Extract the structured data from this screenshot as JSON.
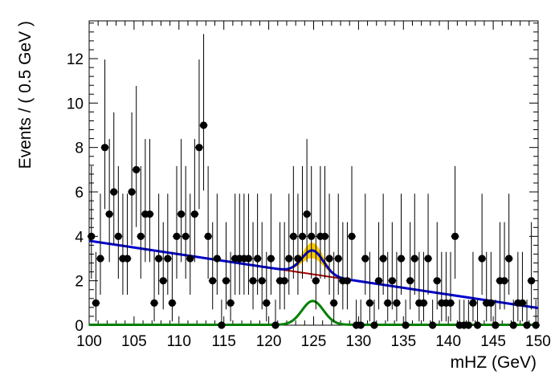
{
  "chart_data": {
    "type": "scatter",
    "title": "",
    "xlabel": "mHZ (GeV)",
    "ylabel": "Events / ( 0.5 GeV )",
    "xlim": [
      100,
      150
    ],
    "ylim": [
      0,
      13.7
    ],
    "grid": false,
    "x_ticks": [
      {
        "value": 100,
        "label": "100"
      },
      {
        "value": 105,
        "label": "105"
      },
      {
        "value": 110,
        "label": "110"
      },
      {
        "value": 115,
        "label": "115"
      },
      {
        "value": 120,
        "label": "120"
      },
      {
        "value": 125,
        "label": "125"
      },
      {
        "value": 130,
        "label": "130"
      },
      {
        "value": 135,
        "label": "135"
      },
      {
        "value": 140,
        "label": "140"
      },
      {
        "value": 145,
        "label": "145"
      },
      {
        "value": 150,
        "label": "150"
      }
    ],
    "y_ticks": [
      {
        "value": 0,
        "label": "0"
      },
      {
        "value": 2,
        "label": "2"
      },
      {
        "value": 4,
        "label": "4"
      },
      {
        "value": 6,
        "label": "6"
      },
      {
        "value": 8,
        "label": "8"
      },
      {
        "value": 10,
        "label": "10"
      },
      {
        "value": 12,
        "label": "12"
      }
    ],
    "points": {
      "x": [
        100.25,
        100.75,
        101.25,
        101.75,
        102.25,
        102.75,
        103.25,
        103.75,
        104.25,
        104.75,
        105.25,
        105.75,
        106.25,
        106.75,
        107.25,
        107.75,
        108.25,
        108.75,
        109.25,
        109.75,
        110.25,
        110.75,
        111.25,
        111.75,
        112.25,
        112.75,
        113.25,
        113.75,
        114.25,
        114.75,
        115.25,
        115.75,
        116.25,
        116.75,
        117.25,
        117.75,
        118.25,
        118.75,
        119.25,
        119.75,
        120.25,
        120.75,
        121.25,
        121.75,
        122.25,
        122.75,
        123.25,
        123.75,
        124.25,
        124.75,
        125.25,
        125.75,
        126.25,
        126.75,
        127.25,
        127.75,
        128.25,
        128.75,
        129.25,
        129.75,
        130.25,
        130.75,
        131.25,
        131.75,
        132.25,
        132.75,
        133.25,
        133.75,
        134.25,
        134.75,
        135.25,
        135.75,
        136.25,
        136.75,
        137.25,
        137.75,
        138.25,
        138.75,
        139.25,
        139.75,
        140.25,
        140.75,
        141.25,
        141.75,
        142.25,
        142.75,
        143.25,
        143.75,
        144.25,
        144.75,
        145.25,
        145.75,
        146.25,
        146.75,
        147.25,
        147.75,
        148.25,
        148.75,
        149.25,
        149.75
      ],
      "y": [
        4,
        1,
        3,
        8,
        5,
        6,
        4,
        3,
        3,
        6,
        7,
        4,
        5,
        5,
        1,
        3,
        2,
        3,
        1,
        4,
        5,
        4,
        3,
        5,
        8,
        9,
        4,
        2,
        3,
        0,
        2,
        1,
        3,
        3,
        3,
        3,
        2,
        3,
        2,
        1,
        3,
        0,
        2,
        2,
        3,
        4,
        3,
        4,
        5,
        4,
        2,
        4,
        4,
        3,
        1,
        3,
        2,
        2,
        4,
        0,
        0,
        3,
        1,
        0,
        2,
        3,
        1,
        2,
        1,
        3,
        0,
        2,
        3,
        1,
        1,
        3,
        0,
        2,
        1,
        1,
        1,
        4,
        0,
        0,
        0,
        1,
        0,
        3,
        1,
        1,
        0,
        2,
        2,
        3,
        0,
        1,
        1,
        0,
        2,
        0
      ],
      "errors_low": [
        1.91,
        0.83,
        1.63,
        2.77,
        2.16,
        2.38,
        1.91,
        1.63,
        1.63,
        2.38,
        2.58,
        1.91,
        2.16,
        2.16,
        0.83,
        1.63,
        1.29,
        1.63,
        0.83,
        1.91,
        2.16,
        1.91,
        1.63,
        2.16,
        2.77,
        2.94,
        1.91,
        1.29,
        1.63,
        0,
        1.29,
        0.83,
        1.63,
        1.63,
        1.63,
        1.63,
        1.29,
        1.63,
        1.29,
        0.83,
        1.63,
        0,
        1.29,
        1.29,
        1.63,
        1.91,
        1.63,
        1.91,
        2.16,
        1.91,
        1.29,
        1.91,
        1.91,
        1.63,
        0.83,
        1.63,
        1.29,
        1.29,
        1.91,
        0,
        0,
        1.63,
        0.83,
        0,
        1.29,
        1.63,
        0.83,
        1.29,
        0.83,
        1.63,
        0,
        1.29,
        1.63,
        0.83,
        0.83,
        1.63,
        0,
        1.29,
        0.83,
        0.83,
        0.83,
        1.91,
        0,
        0,
        0,
        0.83,
        0,
        1.63,
        0.83,
        0.83,
        0,
        1.29,
        1.29,
        1.63,
        0,
        0.83,
        0.83,
        0,
        1.29,
        0
      ],
      "errors_high": [
        3.16,
        2.3,
        2.92,
        3.96,
        3.38,
        3.58,
        3.16,
        2.92,
        2.92,
        3.58,
        3.77,
        3.16,
        3.38,
        3.38,
        2.3,
        2.92,
        2.64,
        2.92,
        2.3,
        3.16,
        3.38,
        3.16,
        2.92,
        3.38,
        3.96,
        4.11,
        3.16,
        2.64,
        2.92,
        1.15,
        2.64,
        2.3,
        2.92,
        2.92,
        2.92,
        2.92,
        2.64,
        2.92,
        2.64,
        2.3,
        2.92,
        1.15,
        2.64,
        2.64,
        2.92,
        3.16,
        2.92,
        3.16,
        3.38,
        3.16,
        2.64,
        3.16,
        3.16,
        2.92,
        2.3,
        2.92,
        2.64,
        2.64,
        3.16,
        1.15,
        1.15,
        2.92,
        2.3,
        1.15,
        2.64,
        2.92,
        2.3,
        2.64,
        2.3,
        2.92,
        1.15,
        2.64,
        2.92,
        2.3,
        2.3,
        2.92,
        1.15,
        2.64,
        2.3,
        2.3,
        2.3,
        3.16,
        1.15,
        1.15,
        1.15,
        2.3,
        1.15,
        2.92,
        2.3,
        2.3,
        1.15,
        2.64,
        2.64,
        2.92,
        1.15,
        2.3,
        2.3,
        1.15,
        2.64,
        1.15
      ]
    },
    "background": {
      "color": "#aa0000",
      "y_at_100": 3.8,
      "slope_per_gev": -0.0605
    },
    "signal": {
      "color": "#008000",
      "mean": 124.9,
      "sigma": 1.2,
      "peak": 1.07
    },
    "total_color": "#0000cc",
    "band_color": "#ffcc00"
  }
}
